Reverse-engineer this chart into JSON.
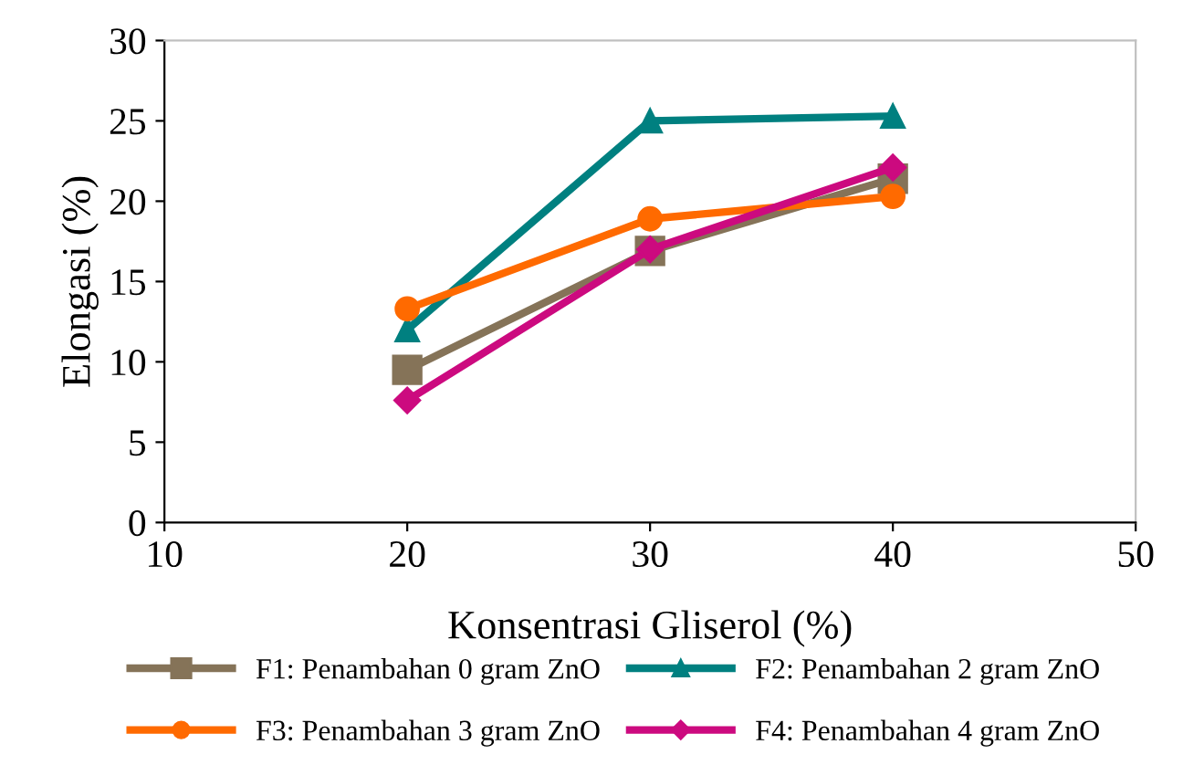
{
  "chart_data": {
    "type": "line",
    "xlabel": "Konsentrasi Gliserol (%)",
    "ylabel": "Elongasi (%)",
    "x": [
      20,
      30,
      40
    ],
    "series": [
      {
        "name": "F1: Penambahan 0 gram ZnO",
        "color": "#857358",
        "marker": "square",
        "values": [
          9.5,
          16.9,
          21.4
        ]
      },
      {
        "name": "F2: Penambahan 2 gram ZnO",
        "color": "#008080",
        "marker": "triangle",
        "values": [
          12.0,
          25.0,
          25.3
        ]
      },
      {
        "name": "F3: Penambahan 3 gram ZnO",
        "color": "#ff6a00",
        "marker": "circle",
        "values": [
          13.3,
          18.9,
          20.3
        ]
      },
      {
        "name": "F4: Penambahan 4 gram ZnO",
        "color": "#cc0a7f",
        "marker": "diamond",
        "values": [
          7.6,
          17.0,
          22.1
        ]
      }
    ],
    "xlim": [
      10,
      50
    ],
    "xticks": [
      10,
      20,
      30,
      40,
      50
    ],
    "ylim": [
      0,
      30
    ],
    "yticks": [
      0,
      5,
      10,
      15,
      20,
      25,
      30
    ],
    "grid": false,
    "legend": "bottom",
    "line_style": "solid"
  }
}
